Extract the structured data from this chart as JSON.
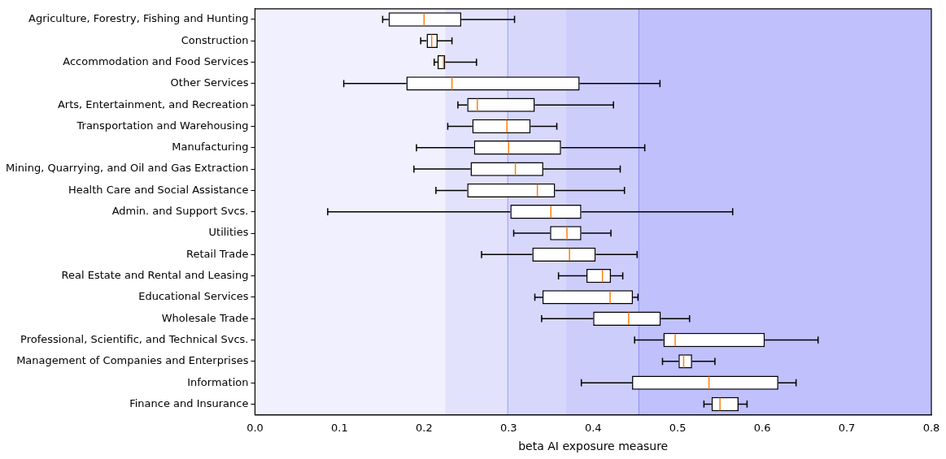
{
  "chart_data": {
    "type": "box",
    "orientation": "horizontal",
    "xlabel": "beta AI exposure measure",
    "categories": [
      "Agriculture, Forestry, Fishing and Hunting",
      "Construction",
      "Accommodation and Food Services",
      "Other Services",
      "Arts, Entertainment, and Recreation",
      "Transportation and Warehousing",
      "Manufacturing",
      "Mining, Quarrying, and Oil and Gas Extraction",
      "Health Care and Social Assistance",
      "Admin. and Support Svcs.",
      "Utilities",
      "Retail Trade",
      "Real Estate and Rental and Leasing",
      "Educational Services",
      "Wholesale Trade",
      "Professional, Scientific, and Technical Svcs.",
      "Management of Companies and Enterprises",
      "Information",
      "Finance and Insurance"
    ],
    "boxes": [
      {
        "low": 0.151,
        "q1": 0.158,
        "median": 0.2,
        "q3": 0.244,
        "high": 0.307
      },
      {
        "low": 0.196,
        "q1": 0.203,
        "median": 0.209,
        "q3": 0.216,
        "high": 0.233
      },
      {
        "low": 0.212,
        "q1": 0.216,
        "median": 0.223,
        "q3": 0.225,
        "high": 0.262
      },
      {
        "low": 0.105,
        "q1": 0.179,
        "median": 0.233,
        "q3": 0.384,
        "high": 0.479
      },
      {
        "low": 0.24,
        "q1": 0.251,
        "median": 0.263,
        "q3": 0.331,
        "high": 0.424
      },
      {
        "low": 0.228,
        "q1": 0.257,
        "median": 0.298,
        "q3": 0.326,
        "high": 0.357
      },
      {
        "low": 0.191,
        "q1": 0.259,
        "median": 0.3,
        "q3": 0.362,
        "high": 0.461
      },
      {
        "low": 0.188,
        "q1": 0.255,
        "median": 0.308,
        "q3": 0.341,
        "high": 0.432
      },
      {
        "low": 0.214,
        "q1": 0.251,
        "median": 0.334,
        "q3": 0.355,
        "high": 0.437
      },
      {
        "low": 0.086,
        "q1": 0.302,
        "median": 0.35,
        "q3": 0.386,
        "high": 0.565
      },
      {
        "low": 0.306,
        "q1": 0.349,
        "median": 0.369,
        "q3": 0.386,
        "high": 0.421
      },
      {
        "low": 0.268,
        "q1": 0.328,
        "median": 0.372,
        "q3": 0.403,
        "high": 0.452
      },
      {
        "low": 0.359,
        "q1": 0.392,
        "median": 0.411,
        "q3": 0.421,
        "high": 0.435
      },
      {
        "low": 0.331,
        "q1": 0.34,
        "median": 0.42,
        "q3": 0.447,
        "high": 0.453
      },
      {
        "low": 0.339,
        "q1": 0.4,
        "median": 0.442,
        "q3": 0.48,
        "high": 0.514
      },
      {
        "low": 0.449,
        "q1": 0.483,
        "median": 0.497,
        "q3": 0.603,
        "high": 0.666
      },
      {
        "low": 0.482,
        "q1": 0.501,
        "median": 0.507,
        "q3": 0.517,
        "high": 0.544
      },
      {
        "low": 0.386,
        "q1": 0.446,
        "median": 0.537,
        "q3": 0.619,
        "high": 0.64
      },
      {
        "low": 0.531,
        "q1": 0.54,
        "median": 0.55,
        "q3": 0.572,
        "high": 0.582
      }
    ],
    "xlim": [
      0,
      0.8
    ],
    "xticks": [
      {
        "value": 0,
        "label": "0.0"
      },
      0.1,
      0.2,
      0.3,
      0.4,
      0.5,
      0.6,
      0.7,
      0.8
    ],
    "bands": [
      {
        "axis": "x",
        "from": 0,
        "to": 0.225,
        "color": "#f0f0fe"
      },
      {
        "axis": "x",
        "from": 0.225,
        "to": 0.299,
        "color": "#e2e2fc"
      },
      {
        "axis": "x",
        "from": 0.299,
        "to": 0.368,
        "color": "#d7d7fc"
      },
      {
        "axis": "x",
        "from": 0.368,
        "to": 0.454,
        "color": "#cdcdfc"
      },
      {
        "axis": "x",
        "from": 0.454,
        "to": 0.8,
        "color": "#c0c0fc"
      }
    ],
    "ref_lines": [
      {
        "axis": "x",
        "value": 0.299,
        "color": "#9a9af8"
      },
      {
        "axis": "x",
        "value": 0.454,
        "color": "#8a8af8"
      }
    ],
    "grid": false,
    "legend": false
  }
}
